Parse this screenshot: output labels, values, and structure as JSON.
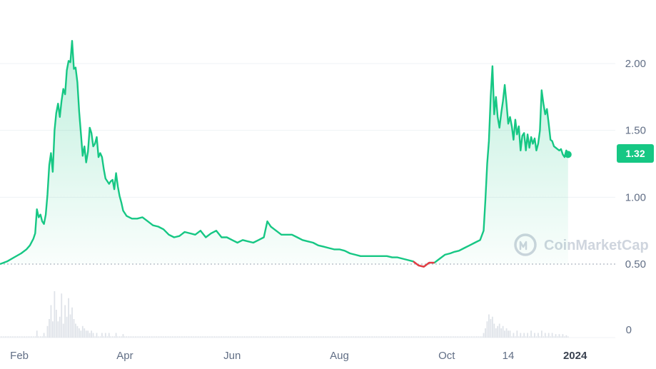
{
  "watermark": {
    "text": "CoinMarketCap"
  },
  "colors": {
    "up": "#16c784",
    "down": "#ea3943",
    "grid": "#eff2f5",
    "text": "#616e85",
    "baseline": "#9aa3b1",
    "volume": "#dfe3e9"
  },
  "chart_data": {
    "type": "area",
    "title": "",
    "xlabel": "",
    "ylabel": "",
    "ylim": [
      0.47,
      2.32
    ],
    "ylim_volume": [
      0,
      0.24
    ],
    "grid": true,
    "legend": "none",
    "current_price_label": "1.32",
    "reference_line": 0.5,
    "x_ticks": [
      {
        "label": "Feb",
        "x": 21,
        "strong": false
      },
      {
        "label": "Apr",
        "x": 81,
        "strong": false
      },
      {
        "label": "Jun",
        "x": 142,
        "strong": false
      },
      {
        "label": "Aug",
        "x": 203,
        "strong": false
      },
      {
        "label": "Oct",
        "x": 264,
        "strong": false
      },
      {
        "label": "14",
        "x": 299,
        "strong": false
      },
      {
        "label": "2024",
        "x": 337,
        "strong": true
      }
    ],
    "y_ticks": [
      {
        "label": "2.00",
        "value": 2.0
      },
      {
        "label": "1.50",
        "value": 1.5
      },
      {
        "label": "1.00",
        "value": 1.0
      },
      {
        "label": "0.50",
        "value": 0.5
      }
    ],
    "volume_ticks": [
      {
        "label": "0",
        "value": 0
      }
    ],
    "x_range": [
      10,
      355
    ],
    "series": [
      {
        "values": [
          [
            10,
            0.5
          ],
          [
            14,
            0.52
          ],
          [
            18,
            0.55
          ],
          [
            22,
            0.58
          ],
          [
            25,
            0.61
          ],
          [
            27,
            0.64
          ],
          [
            29,
            0.69
          ],
          [
            30,
            0.73
          ],
          [
            31,
            0.91
          ],
          [
            32,
            0.85
          ],
          [
            33,
            0.87
          ],
          [
            34,
            0.82
          ],
          [
            35,
            0.8
          ],
          [
            36,
            0.87
          ],
          [
            37,
            1.02
          ],
          [
            38,
            1.24
          ],
          [
            39,
            1.33
          ],
          [
            40,
            1.19
          ],
          [
            41,
            1.5
          ],
          [
            42,
            1.63
          ],
          [
            43,
            1.7
          ],
          [
            44,
            1.6
          ],
          [
            45,
            1.72
          ],
          [
            46,
            1.81
          ],
          [
            47,
            1.77
          ],
          [
            48,
            1.95
          ],
          [
            49,
            2.02
          ],
          [
            50,
            2.01
          ],
          [
            51,
            2.17
          ],
          [
            52,
            1.96
          ],
          [
            53,
            1.97
          ],
          [
            54,
            1.86
          ],
          [
            55,
            1.64
          ],
          [
            56,
            1.48
          ],
          [
            57,
            1.31
          ],
          [
            58,
            1.38
          ],
          [
            59,
            1.26
          ],
          [
            60,
            1.34
          ],
          [
            61,
            1.52
          ],
          [
            62,
            1.48
          ],
          [
            63,
            1.38
          ],
          [
            64,
            1.4
          ],
          [
            65,
            1.45
          ],
          [
            66,
            1.3
          ],
          [
            67,
            1.33
          ],
          [
            68,
            1.3
          ],
          [
            69,
            1.21
          ],
          [
            70,
            1.14
          ],
          [
            71,
            1.12
          ],
          [
            72,
            1.1
          ],
          [
            73,
            1.12
          ],
          [
            74,
            1.13
          ],
          [
            75,
            1.06
          ],
          [
            76,
            1.18
          ],
          [
            77,
            1.08
          ],
          [
            78,
            1.01
          ],
          [
            79,
            0.96
          ],
          [
            80,
            0.9
          ],
          [
            82,
            0.86
          ],
          [
            85,
            0.84
          ],
          [
            88,
            0.84
          ],
          [
            91,
            0.85
          ],
          [
            94,
            0.82
          ],
          [
            97,
            0.79
          ],
          [
            100,
            0.78
          ],
          [
            103,
            0.76
          ],
          [
            106,
            0.72
          ],
          [
            109,
            0.7
          ],
          [
            112,
            0.71
          ],
          [
            115,
            0.74
          ],
          [
            118,
            0.73
          ],
          [
            121,
            0.72
          ],
          [
            124,
            0.75
          ],
          [
            127,
            0.7
          ],
          [
            130,
            0.73
          ],
          [
            133,
            0.75
          ],
          [
            136,
            0.7
          ],
          [
            139,
            0.7
          ],
          [
            142,
            0.68
          ],
          [
            145,
            0.66
          ],
          [
            148,
            0.68
          ],
          [
            151,
            0.67
          ],
          [
            154,
            0.66
          ],
          [
            157,
            0.68
          ],
          [
            160,
            0.7
          ],
          [
            162,
            0.82
          ],
          [
            164,
            0.78
          ],
          [
            167,
            0.75
          ],
          [
            170,
            0.72
          ],
          [
            173,
            0.72
          ],
          [
            176,
            0.72
          ],
          [
            179,
            0.7
          ],
          [
            182,
            0.68
          ],
          [
            185,
            0.67
          ],
          [
            188,
            0.66
          ],
          [
            191,
            0.64
          ],
          [
            194,
            0.63
          ],
          [
            197,
            0.62
          ],
          [
            200,
            0.61
          ],
          [
            203,
            0.61
          ],
          [
            206,
            0.6
          ],
          [
            209,
            0.58
          ],
          [
            212,
            0.57
          ],
          [
            215,
            0.56
          ],
          [
            218,
            0.56
          ],
          [
            221,
            0.56
          ],
          [
            224,
            0.56
          ],
          [
            227,
            0.56
          ],
          [
            230,
            0.56
          ],
          [
            233,
            0.55
          ],
          [
            236,
            0.55
          ],
          [
            239,
            0.54
          ],
          [
            242,
            0.53
          ],
          [
            245,
            0.52
          ],
          [
            248,
            0.49
          ],
          [
            251,
            0.48
          ],
          [
            254,
            0.51
          ],
          [
            257,
            0.51
          ],
          [
            260,
            0.54
          ],
          [
            263,
            0.57
          ],
          [
            266,
            0.58
          ],
          [
            268,
            0.59
          ],
          [
            271,
            0.6
          ],
          [
            274,
            0.62
          ],
          [
            277,
            0.64
          ],
          [
            280,
            0.66
          ],
          [
            283,
            0.68
          ],
          [
            285,
            0.75
          ],
          [
            286,
            0.98
          ],
          [
            287,
            1.25
          ],
          [
            288,
            1.42
          ],
          [
            289,
            1.75
          ],
          [
            290,
            1.98
          ],
          [
            291,
            1.62
          ],
          [
            292,
            1.75
          ],
          [
            293,
            1.6
          ],
          [
            294,
            1.52
          ],
          [
            295,
            1.63
          ],
          [
            296,
            1.72
          ],
          [
            297,
            1.84
          ],
          [
            298,
            1.7
          ],
          [
            299,
            1.55
          ],
          [
            300,
            1.6
          ],
          [
            301,
            1.53
          ],
          [
            302,
            1.43
          ],
          [
            303,
            1.58
          ],
          [
            304,
            1.47
          ],
          [
            305,
            1.53
          ],
          [
            306,
            1.35
          ],
          [
            307,
            1.46
          ],
          [
            308,
            1.48
          ],
          [
            309,
            1.35
          ],
          [
            310,
            1.47
          ],
          [
            311,
            1.37
          ],
          [
            312,
            1.45
          ],
          [
            313,
            1.4
          ],
          [
            314,
            1.44
          ],
          [
            315,
            1.35
          ],
          [
            316,
            1.4
          ],
          [
            317,
            1.5
          ],
          [
            318,
            1.8
          ],
          [
            319,
            1.7
          ],
          [
            320,
            1.62
          ],
          [
            321,
            1.66
          ],
          [
            322,
            1.55
          ],
          [
            323,
            1.43
          ],
          [
            324,
            1.42
          ],
          [
            325,
            1.38
          ],
          [
            326,
            1.37
          ],
          [
            327,
            1.36
          ],
          [
            328,
            1.35
          ],
          [
            329,
            1.36
          ],
          [
            330,
            1.32
          ],
          [
            331,
            1.3
          ],
          [
            332,
            1.35
          ],
          [
            333,
            1.32
          ]
        ]
      }
    ],
    "down_segment": [
      [
        245,
        0.52
      ],
      [
        248,
        0.49
      ],
      [
        251,
        0.48
      ],
      [
        254,
        0.51
      ],
      [
        257,
        0.51
      ]
    ],
    "volume": [
      [
        31,
        0.03
      ],
      [
        35,
        0.02
      ],
      [
        37,
        0.05
      ],
      [
        38,
        0.08
      ],
      [
        39,
        0.14
      ],
      [
        40,
        0.07
      ],
      [
        41,
        0.2
      ],
      [
        42,
        0.12
      ],
      [
        43,
        0.07
      ],
      [
        44,
        0.09
      ],
      [
        45,
        0.19
      ],
      [
        46,
        0.06
      ],
      [
        47,
        0.14
      ],
      [
        48,
        0.09
      ],
      [
        49,
        0.17
      ],
      [
        50,
        0.1
      ],
      [
        51,
        0.13
      ],
      [
        52,
        0.08
      ],
      [
        53,
        0.06
      ],
      [
        54,
        0.05
      ],
      [
        55,
        0.04
      ],
      [
        56,
        0.03
      ],
      [
        57,
        0.05
      ],
      [
        58,
        0.04
      ],
      [
        59,
        0.03
      ],
      [
        60,
        0.03
      ],
      [
        61,
        0.02
      ],
      [
        62,
        0.03
      ],
      [
        63,
        0.02
      ],
      [
        65,
        0.02
      ],
      [
        68,
        0.02
      ],
      [
        70,
        0.02
      ],
      [
        72,
        0.02
      ],
      [
        76,
        0.02
      ],
      [
        80,
        0.015
      ],
      [
        285,
        0.02
      ],
      [
        286,
        0.04
      ],
      [
        287,
        0.07
      ],
      [
        288,
        0.1
      ],
      [
        289,
        0.08
      ],
      [
        290,
        0.09
      ],
      [
        291,
        0.06
      ],
      [
        292,
        0.04
      ],
      [
        293,
        0.05
      ],
      [
        294,
        0.06
      ],
      [
        295,
        0.04
      ],
      [
        296,
        0.05
      ],
      [
        297,
        0.03
      ],
      [
        298,
        0.04
      ],
      [
        299,
        0.03
      ],
      [
        300,
        0.03
      ],
      [
        302,
        0.02
      ],
      [
        304,
        0.03
      ],
      [
        306,
        0.02
      ],
      [
        308,
        0.02
      ],
      [
        310,
        0.02
      ],
      [
        312,
        0.03
      ],
      [
        314,
        0.02
      ],
      [
        316,
        0.02
      ],
      [
        318,
        0.03
      ],
      [
        320,
        0.02
      ],
      [
        322,
        0.02
      ],
      [
        324,
        0.02
      ],
      [
        326,
        0.015
      ],
      [
        328,
        0.015
      ],
      [
        330,
        0.015
      ],
      [
        332,
        0.01
      ]
    ]
  }
}
